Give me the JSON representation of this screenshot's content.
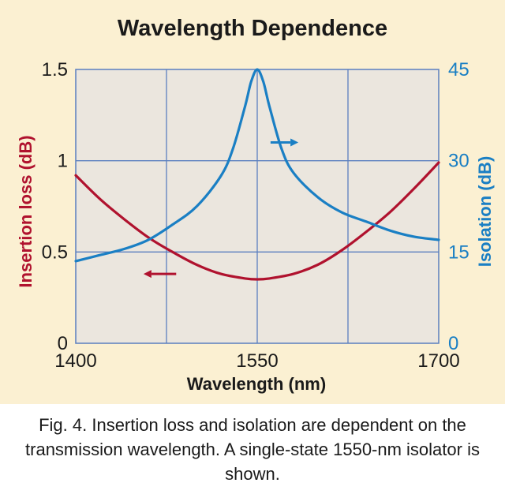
{
  "chart_data": {
    "type": "line",
    "title": "Wavelength Dependence",
    "xlabel": "Wavelength (nm)",
    "ylabel": "Insertion loss (dB)",
    "y2label": "Isolation (dB)",
    "xlim": [
      1400,
      1700
    ],
    "ylim": [
      0,
      1.5
    ],
    "y2lim": [
      0,
      45
    ],
    "x_ticks": [
      1400,
      1550,
      1700
    ],
    "x_tick_labels": [
      "1400",
      "1550",
      "1700"
    ],
    "x_gridlines": [
      1475,
      1550,
      1625
    ],
    "y_ticks": [
      0,
      0.5,
      1,
      1.5
    ],
    "y_tick_labels": [
      "0",
      "0.5",
      "1",
      "1.5"
    ],
    "y2_ticks": [
      0,
      15,
      30,
      45
    ],
    "y2_tick_labels": [
      "0",
      "15",
      "30",
      "45"
    ],
    "grid": true,
    "colors": {
      "insertion_loss": "#b0122e",
      "isolation": "#1a7fc4",
      "plot_bg": "#ebe6de",
      "grid": "#5b7fbf",
      "axis_text": "#1a1a1a"
    },
    "series": [
      {
        "name": "Insertion loss",
        "axis": "left",
        "x": [
          1400,
          1420,
          1440,
          1460,
          1480,
          1500,
          1520,
          1540,
          1550,
          1560,
          1580,
          1600,
          1620,
          1640,
          1660,
          1680,
          1700
        ],
        "values": [
          0.92,
          0.79,
          0.68,
          0.58,
          0.5,
          0.43,
          0.38,
          0.355,
          0.35,
          0.355,
          0.38,
          0.43,
          0.51,
          0.61,
          0.72,
          0.85,
          0.99
        ]
      },
      {
        "name": "Isolation",
        "axis": "right",
        "x": [
          1400,
          1420,
          1440,
          1460,
          1480,
          1500,
          1520,
          1530,
          1540,
          1545,
          1550,
          1555,
          1560,
          1570,
          1580,
          1600,
          1620,
          1640,
          1660,
          1680,
          1700
        ],
        "values": [
          13.5,
          14.5,
          15.5,
          17,
          19.5,
          22.5,
          27.5,
          32,
          39,
          43,
          45,
          43,
          39,
          32,
          28,
          24,
          21.5,
          20,
          18.5,
          17.5,
          17
        ]
      }
    ],
    "annotations": [
      {
        "type": "arrow",
        "direction": "right",
        "series": "Isolation",
        "x_from": 1561,
        "x_to": 1584,
        "y2": 33
      },
      {
        "type": "arrow",
        "direction": "left",
        "series": "Insertion loss",
        "x_from": 1483,
        "x_to": 1456,
        "y": 0.38
      }
    ]
  },
  "caption": "Fig. 4. Insertion loss and isolation are dependent on the transmission wavelength. A single-state 1550-nm isolator is shown."
}
